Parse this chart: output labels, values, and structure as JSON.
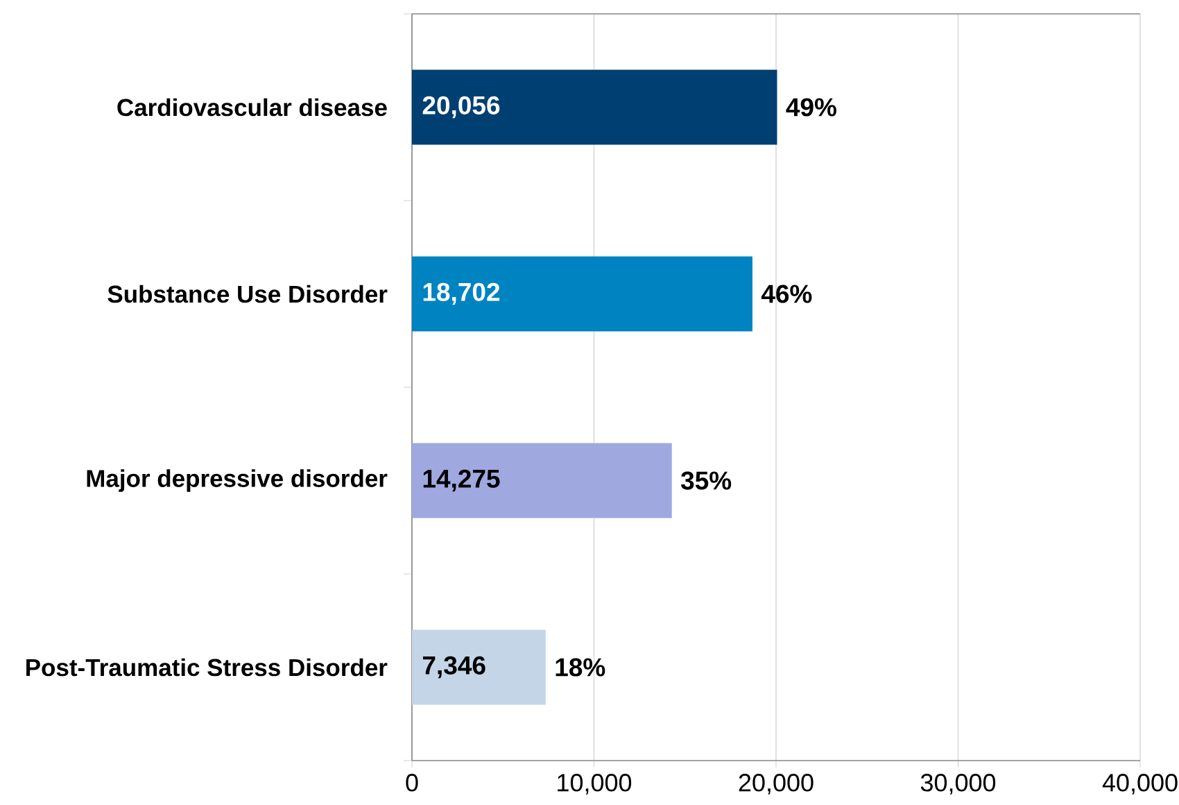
{
  "chart_data": {
    "type": "bar",
    "orientation": "horizontal",
    "categories": [
      "Cardiovascular disease",
      "Substance Use Disorder",
      "Major depressive disorder",
      "Post-Traumatic Stress Disorder"
    ],
    "values": [
      20056,
      18702,
      14275,
      7346
    ],
    "colors": [
      "#003f72",
      "#0083c1",
      "#9fa9e0",
      "#c5d5e8"
    ],
    "value_labels": [
      "20,056",
      "18,702",
      "14,275",
      "7,346"
    ],
    "annotations": [
      {
        "text": "49%",
        "x": 20056,
        "y": "Cardiovascular disease"
      },
      {
        "text": "46%",
        "x": 18702,
        "y": "Substance Use Disorder"
      },
      {
        "text": "35%",
        "x": 14275,
        "y": "Major depressive disorder"
      },
      {
        "text": "18%",
        "x": 7346,
        "y": "Post-Traumatic Stress Disorder"
      }
    ],
    "xlim": [
      0,
      40000
    ],
    "xticks": [
      0,
      {
        "value": 10000,
        "label": "10,000"
      },
      {
        "value": 20000,
        "label": "20,000"
      },
      {
        "value": 30000,
        "label": "30,000"
      },
      {
        "value": 40000,
        "label": "40,000"
      }
    ],
    "grid": "x"
  }
}
